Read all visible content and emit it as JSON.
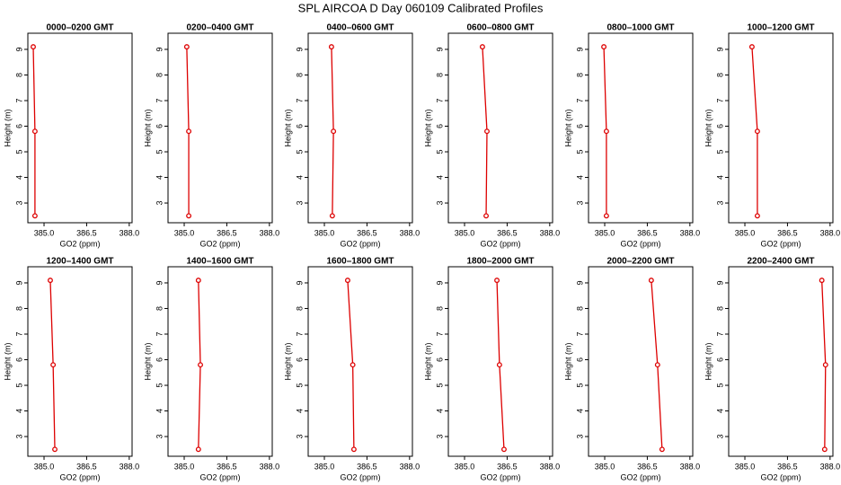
{
  "title": "SPL AIRCOA D  Day 060109  Calibrated Profiles",
  "chart_data": [
    {
      "type": "line",
      "title": "0000–0200 GMT",
      "xlabel": "GO2 (ppm)",
      "ylabel": "Height (m)",
      "color": "#dd0000",
      "x": [
        384.62,
        384.68,
        384.68
      ],
      "y": [
        9.1,
        5.8,
        2.5
      ],
      "xlim": [
        384.43,
        388.1
      ],
      "ylim": [
        2.23,
        9.63
      ],
      "xticks": [
        {
          "value": 385,
          "label": "385.0"
        },
        {
          "value": 386.5,
          "label": "386.5"
        },
        {
          "value": 388,
          "label": "388.0"
        }
      ],
      "yticks": [
        3,
        4,
        5,
        6,
        7,
        8,
        9
      ]
    },
    {
      "type": "line",
      "title": "0200–0400 GMT",
      "xlabel": "GO2 (ppm)",
      "ylabel": "Height (m)",
      "color": "#dd0000",
      "x": [
        385.09,
        385.16,
        385.16
      ],
      "y": [
        9.1,
        5.8,
        2.5
      ],
      "xlim": [
        384.43,
        388.1
      ],
      "ylim": [
        2.23,
        9.63
      ],
      "xticks": [
        {
          "value": 385,
          "label": "385.0"
        },
        {
          "value": 386.5,
          "label": "386.5"
        },
        {
          "value": 388,
          "label": "388.0"
        }
      ],
      "yticks": [
        3,
        4,
        5,
        6,
        7,
        8,
        9
      ]
    },
    {
      "type": "line",
      "title": "0400–0600 GMT",
      "xlabel": "GO2 (ppm)",
      "ylabel": "Height (m)",
      "color": "#dd0000",
      "x": [
        385.25,
        385.32,
        385.28
      ],
      "y": [
        9.1,
        5.8,
        2.5
      ],
      "xlim": [
        384.43,
        388.1
      ],
      "ylim": [
        2.23,
        9.63
      ],
      "xticks": [
        {
          "value": 385,
          "label": "385.0"
        },
        {
          "value": 386.5,
          "label": "386.5"
        },
        {
          "value": 388,
          "label": "388.0"
        }
      ],
      "yticks": [
        3,
        4,
        5,
        6,
        7,
        8,
        9
      ]
    },
    {
      "type": "line",
      "title": "0600–0800 GMT",
      "xlabel": "GO2 (ppm)",
      "ylabel": "Height (m)",
      "color": "#dd0000",
      "x": [
        385.63,
        385.79,
        385.76
      ],
      "y": [
        9.1,
        5.8,
        2.5
      ],
      "xlim": [
        384.43,
        388.1
      ],
      "ylim": [
        2.23,
        9.63
      ],
      "xticks": [
        {
          "value": 385,
          "label": "385.0"
        },
        {
          "value": 386.5,
          "label": "386.5"
        },
        {
          "value": 388,
          "label": "388.0"
        }
      ],
      "yticks": [
        3,
        4,
        5,
        6,
        7,
        8,
        9
      ]
    },
    {
      "type": "line",
      "title": "0800–1000 GMT",
      "xlabel": "GO2 (ppm)",
      "ylabel": "Height (m)",
      "color": "#dd0000",
      "x": [
        384.97,
        385.06,
        385.06
      ],
      "y": [
        9.1,
        5.8,
        2.5
      ],
      "xlim": [
        384.43,
        388.1
      ],
      "ylim": [
        2.23,
        9.63
      ],
      "xticks": [
        {
          "value": 385,
          "label": "385.0"
        },
        {
          "value": 386.5,
          "label": "386.5"
        },
        {
          "value": 388,
          "label": "388.0"
        }
      ],
      "yticks": [
        3,
        4,
        5,
        6,
        7,
        8,
        9
      ]
    },
    {
      "type": "line",
      "title": "1000–1200 GMT",
      "xlabel": "GO2 (ppm)",
      "ylabel": "Height (m)",
      "color": "#dd0000",
      "x": [
        385.25,
        385.44,
        385.44
      ],
      "y": [
        9.1,
        5.8,
        2.5
      ],
      "xlim": [
        384.43,
        388.1
      ],
      "ylim": [
        2.23,
        9.63
      ],
      "xticks": [
        {
          "value": 385,
          "label": "385.0"
        },
        {
          "value": 386.5,
          "label": "386.5"
        },
        {
          "value": 388,
          "label": "388.0"
        }
      ],
      "yticks": [
        3,
        4,
        5,
        6,
        7,
        8,
        9
      ]
    },
    {
      "type": "line",
      "title": "1200–1400 GMT",
      "xlabel": "GO2 (ppm)",
      "ylabel": "Height (m)",
      "color": "#dd0000",
      "x": [
        385.22,
        385.32,
        385.38
      ],
      "y": [
        9.1,
        5.8,
        2.5
      ],
      "xlim": [
        384.43,
        388.1
      ],
      "ylim": [
        2.23,
        9.63
      ],
      "xticks": [
        {
          "value": 385,
          "label": "385.0"
        },
        {
          "value": 386.5,
          "label": "386.5"
        },
        {
          "value": 388,
          "label": "388.0"
        }
      ],
      "yticks": [
        3,
        4,
        5,
        6,
        7,
        8,
        9
      ]
    },
    {
      "type": "line",
      "title": "1400–1600 GMT",
      "xlabel": "GO2 (ppm)",
      "ylabel": "Height (m)",
      "color": "#dd0000",
      "x": [
        385.5,
        385.57,
        385.5
      ],
      "y": [
        9.1,
        5.8,
        2.5
      ],
      "xlim": [
        384.43,
        388.1
      ],
      "ylim": [
        2.23,
        9.63
      ],
      "xticks": [
        {
          "value": 385,
          "label": "385.0"
        },
        {
          "value": 386.5,
          "label": "386.5"
        },
        {
          "value": 388,
          "label": "388.0"
        }
      ],
      "yticks": [
        3,
        4,
        5,
        6,
        7,
        8,
        9
      ]
    },
    {
      "type": "line",
      "title": "1600–1800 GMT",
      "xlabel": "GO2 (ppm)",
      "ylabel": "Height (m)",
      "color": "#dd0000",
      "x": [
        385.82,
        386.0,
        386.04
      ],
      "y": [
        9.1,
        5.8,
        2.5
      ],
      "xlim": [
        384.43,
        388.1
      ],
      "ylim": [
        2.23,
        9.63
      ],
      "xticks": [
        {
          "value": 385,
          "label": "385.0"
        },
        {
          "value": 386.5,
          "label": "386.5"
        },
        {
          "value": 388,
          "label": "388.0"
        }
      ],
      "yticks": [
        3,
        4,
        5,
        6,
        7,
        8,
        9
      ]
    },
    {
      "type": "line",
      "title": "1800–2000 GMT",
      "xlabel": "GO2 (ppm)",
      "ylabel": "Height (m)",
      "color": "#dd0000",
      "x": [
        386.14,
        386.23,
        386.39
      ],
      "y": [
        9.1,
        5.8,
        2.5
      ],
      "xlim": [
        384.43,
        388.1
      ],
      "ylim": [
        2.23,
        9.63
      ],
      "xticks": [
        {
          "value": 385,
          "label": "385.0"
        },
        {
          "value": 386.5,
          "label": "386.5"
        },
        {
          "value": 388,
          "label": "388.0"
        }
      ],
      "yticks": [
        3,
        4,
        5,
        6,
        7,
        8,
        9
      ]
    },
    {
      "type": "line",
      "title": "2000–2200 GMT",
      "xlabel": "GO2 (ppm)",
      "ylabel": "Height (m)",
      "color": "#dd0000",
      "x": [
        386.64,
        386.86,
        387.02
      ],
      "y": [
        9.1,
        5.8,
        2.5
      ],
      "xlim": [
        384.43,
        388.1
      ],
      "ylim": [
        2.23,
        9.63
      ],
      "xticks": [
        {
          "value": 385,
          "label": "385.0"
        },
        {
          "value": 386.5,
          "label": "386.5"
        },
        {
          "value": 388,
          "label": "388.0"
        }
      ],
      "yticks": [
        3,
        4,
        5,
        6,
        7,
        8,
        9
      ]
    },
    {
      "type": "line",
      "title": "2200–2400 GMT",
      "xlabel": "GO2 (ppm)",
      "ylabel": "Height (m)",
      "color": "#dd0000",
      "x": [
        387.71,
        387.84,
        387.81
      ],
      "y": [
        9.1,
        5.8,
        2.5
      ],
      "xlim": [
        384.43,
        388.1
      ],
      "ylim": [
        2.23,
        9.63
      ],
      "xticks": [
        {
          "value": 385,
          "label": "385.0"
        },
        {
          "value": 386.5,
          "label": "386.5"
        },
        {
          "value": 388,
          "label": "388.0"
        }
      ],
      "yticks": [
        3,
        4,
        5,
        6,
        7,
        8,
        9
      ]
    }
  ]
}
